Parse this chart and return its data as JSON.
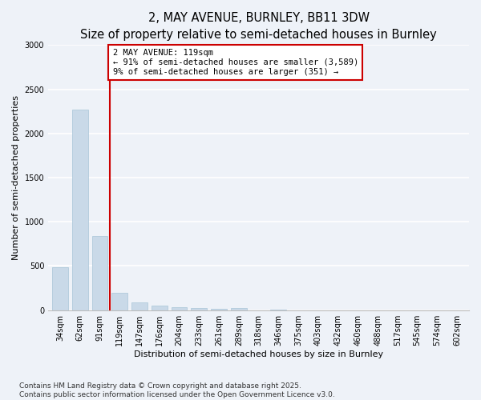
{
  "title": "2, MAY AVENUE, BURNLEY, BB11 3DW",
  "subtitle": "Size of property relative to semi-detached houses in Burnley",
  "xlabel": "Distribution of semi-detached houses by size in Burnley",
  "ylabel": "Number of semi-detached properties",
  "categories": [
    "34sqm",
    "62sqm",
    "91sqm",
    "119sqm",
    "147sqm",
    "176sqm",
    "204sqm",
    "233sqm",
    "261sqm",
    "289sqm",
    "318sqm",
    "346sqm",
    "375sqm",
    "403sqm",
    "432sqm",
    "460sqm",
    "488sqm",
    "517sqm",
    "545sqm",
    "574sqm",
    "602sqm"
  ],
  "values": [
    490,
    2270,
    840,
    195,
    90,
    55,
    30,
    20,
    15,
    20,
    0,
    10,
    0,
    0,
    0,
    0,
    0,
    0,
    0,
    0,
    0
  ],
  "bar_color": "#c9d9e8",
  "bar_edge_color": "#a8c4d8",
  "highlight_index": 3,
  "highlight_color": "#cc0000",
  "annotation_text": "2 MAY AVENUE: 119sqm\n← 91% of semi-detached houses are smaller (3,589)\n9% of semi-detached houses are larger (351) →",
  "annotation_box_color": "#ffffff",
  "annotation_box_edge_color": "#cc0000",
  "ylim": [
    0,
    3000
  ],
  "yticks": [
    0,
    500,
    1000,
    1500,
    2000,
    2500,
    3000
  ],
  "footnote": "Contains HM Land Registry data © Crown copyright and database right 2025.\nContains public sector information licensed under the Open Government Licence v3.0.",
  "bg_color": "#eef2f8",
  "plot_bg_color": "#eef2f8",
  "grid_color": "#ffffff",
  "title_fontsize": 10.5,
  "subtitle_fontsize": 9,
  "axis_label_fontsize": 8,
  "tick_fontsize": 7,
  "footnote_fontsize": 6.5,
  "annotation_fontsize": 7.5
}
